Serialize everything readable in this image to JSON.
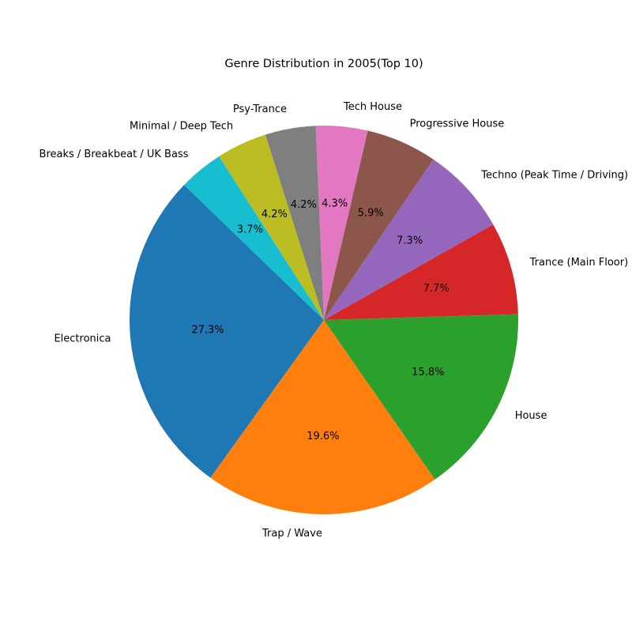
{
  "chart_data": {
    "type": "pie",
    "title": "Genre Distribution in 2005(Top 10)",
    "start_angle_deg": 136,
    "direction": "counterclockwise",
    "slices": [
      {
        "label": "Electronica",
        "value": 27.3,
        "pct_label": "27.3%",
        "color": "#1f77b4"
      },
      {
        "label": "Trap / Wave",
        "value": 19.6,
        "pct_label": "19.6%",
        "color": "#ff7f0e"
      },
      {
        "label": "House",
        "value": 15.8,
        "pct_label": "15.8%",
        "color": "#2ca02c"
      },
      {
        "label": "Trance (Main Floor)",
        "value": 7.7,
        "pct_label": "7.7%",
        "color": "#d62728"
      },
      {
        "label": "Techno (Peak Time / Driving)",
        "value": 7.3,
        "pct_label": "7.3%",
        "color": "#9467bd"
      },
      {
        "label": "Progressive House",
        "value": 5.9,
        "pct_label": "5.9%",
        "color": "#8c564b"
      },
      {
        "label": "Tech House",
        "value": 4.3,
        "pct_label": "4.3%",
        "color": "#e377c2"
      },
      {
        "label": "Psy-Trance",
        "value": 4.2,
        "pct_label": "4.2%",
        "color": "#7f7f7f"
      },
      {
        "label": "Minimal / Deep Tech",
        "value": 4.2,
        "pct_label": "4.2%",
        "color": "#bcbd22"
      },
      {
        "label": "Breaks / Breakbeat / UK Bass",
        "value": 3.7,
        "pct_label": "3.7%",
        "color": "#17becf"
      }
    ]
  }
}
